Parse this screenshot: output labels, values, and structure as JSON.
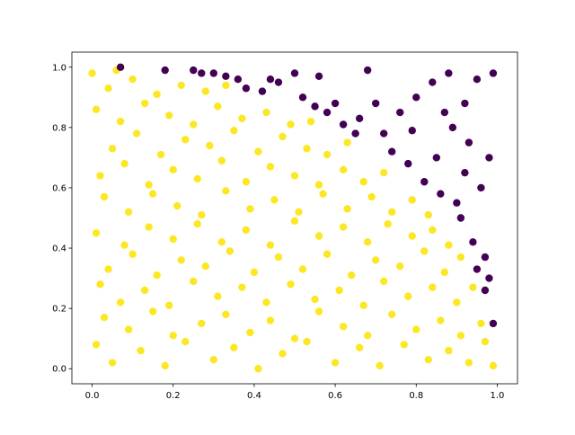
{
  "chart_data": {
    "type": "scatter",
    "xlim": [
      -0.05,
      1.05
    ],
    "ylim": [
      -0.05,
      1.05
    ],
    "xticks": [
      {
        "value": 0,
        "label": "0.0"
      },
      0.2,
      0.4,
      0.6,
      0.8,
      {
        "value": 1,
        "label": "1.0"
      }
    ],
    "yticks": [
      {
        "value": 0,
        "label": "0.0"
      },
      0.2,
      0.4,
      0.6,
      0.8,
      {
        "value": 1,
        "label": "1.0"
      }
    ],
    "series": [
      {
        "color": "#fde725",
        "x": [
          0.01,
          0.05,
          0.12,
          0.18,
          0.23,
          0.3,
          0.35,
          0.41,
          0.47,
          0.53,
          0.6,
          0.66,
          0.71,
          0.77,
          0.83,
          0.88,
          0.93,
          0.97,
          0.99,
          0.03,
          0.09,
          0.15,
          0.2,
          0.27,
          0.33,
          0.39,
          0.44,
          0.5,
          0.56,
          0.62,
          0.68,
          0.74,
          0.8,
          0.86,
          0.91,
          0.96,
          0.02,
          0.07,
          0.13,
          0.19,
          0.25,
          0.31,
          0.37,
          0.43,
          0.49,
          0.55,
          0.61,
          0.67,
          0.72,
          0.78,
          0.84,
          0.9,
          0.94,
          0.04,
          0.1,
          0.16,
          0.22,
          0.28,
          0.34,
          0.4,
          0.46,
          0.52,
          0.58,
          0.64,
          0.7,
          0.76,
          0.82,
          0.87,
          0.91,
          0.01,
          0.08,
          0.14,
          0.2,
          0.26,
          0.32,
          0.38,
          0.44,
          0.5,
          0.56,
          0.62,
          0.68,
          0.73,
          0.79,
          0.84,
          0.88,
          0.03,
          0.09,
          0.15,
          0.21,
          0.27,
          0.33,
          0.39,
          0.45,
          0.51,
          0.57,
          0.63,
          0.69,
          0.74,
          0.79,
          0.83,
          0.02,
          0.08,
          0.14,
          0.2,
          0.26,
          0.32,
          0.38,
          0.44,
          0.5,
          0.56,
          0.62,
          0.67,
          0.72,
          0.05,
          0.11,
          0.17,
          0.23,
          0.29,
          0.35,
          0.41,
          0.47,
          0.53,
          0.58,
          0.63,
          0.01,
          0.07,
          0.13,
          0.19,
          0.25,
          0.31,
          0.37,
          0.43,
          0.49,
          0.54,
          0.0,
          0.04,
          0.1,
          0.16,
          0.22,
          0.28,
          0.33,
          0.06
        ],
        "y": [
          0.08,
          0.02,
          0.06,
          0.01,
          0.09,
          0.03,
          0.07,
          0.0,
          0.05,
          0.09,
          0.02,
          0.07,
          0.01,
          0.08,
          0.03,
          0.06,
          0.02,
          0.09,
          0.01,
          0.17,
          0.13,
          0.19,
          0.11,
          0.15,
          0.18,
          0.12,
          0.16,
          0.1,
          0.19,
          0.14,
          0.11,
          0.18,
          0.13,
          0.16,
          0.11,
          0.15,
          0.28,
          0.22,
          0.26,
          0.21,
          0.29,
          0.24,
          0.27,
          0.22,
          0.28,
          0.23,
          0.26,
          0.21,
          0.29,
          0.24,
          0.27,
          0.22,
          0.27,
          0.33,
          0.38,
          0.31,
          0.36,
          0.34,
          0.39,
          0.32,
          0.37,
          0.33,
          0.38,
          0.31,
          0.36,
          0.34,
          0.39,
          0.32,
          0.37,
          0.45,
          0.41,
          0.47,
          0.43,
          0.48,
          0.42,
          0.46,
          0.41,
          0.49,
          0.44,
          0.47,
          0.42,
          0.48,
          0.44,
          0.46,
          0.41,
          0.57,
          0.52,
          0.58,
          0.54,
          0.51,
          0.59,
          0.53,
          0.56,
          0.52,
          0.58,
          0.53,
          0.57,
          0.52,
          0.56,
          0.51,
          0.64,
          0.68,
          0.61,
          0.66,
          0.63,
          0.69,
          0.62,
          0.67,
          0.64,
          0.61,
          0.66,
          0.62,
          0.65,
          0.73,
          0.78,
          0.71,
          0.76,
          0.74,
          0.79,
          0.72,
          0.77,
          0.73,
          0.71,
          0.75,
          0.86,
          0.82,
          0.88,
          0.84,
          0.81,
          0.87,
          0.83,
          0.85,
          0.81,
          0.82,
          0.98,
          0.93,
          0.96,
          0.91,
          0.94,
          0.92,
          0.94,
          0.99
        ]
      },
      {
        "color": "#440154",
        "x": [
          0.07,
          0.18,
          0.25,
          0.27,
          0.3,
          0.33,
          0.36,
          0.38,
          0.42,
          0.46,
          0.5,
          0.52,
          0.55,
          0.58,
          0.6,
          0.62,
          0.66,
          0.68,
          0.7,
          0.72,
          0.74,
          0.76,
          0.78,
          0.8,
          0.82,
          0.84,
          0.85,
          0.86,
          0.88,
          0.89,
          0.9,
          0.91,
          0.92,
          0.93,
          0.94,
          0.95,
          0.96,
          0.97,
          0.98,
          0.99,
          0.98,
          0.99,
          0.97,
          0.95,
          0.92,
          0.87,
          0.79,
          0.65,
          0.56,
          0.44
        ],
        "y": [
          1.0,
          0.99,
          0.99,
          0.98,
          0.98,
          0.97,
          0.96,
          0.93,
          0.92,
          0.95,
          0.98,
          0.9,
          0.87,
          0.85,
          0.88,
          0.81,
          0.83,
          0.99,
          0.88,
          0.78,
          0.72,
          0.85,
          0.68,
          0.9,
          0.62,
          0.95,
          0.7,
          0.58,
          0.98,
          0.8,
          0.55,
          0.5,
          0.88,
          0.75,
          0.42,
          0.96,
          0.6,
          0.37,
          0.7,
          0.15,
          0.3,
          0.98,
          0.26,
          0.33,
          0.65,
          0.85,
          0.79,
          0.78,
          0.97,
          0.96
        ]
      }
    ]
  }
}
